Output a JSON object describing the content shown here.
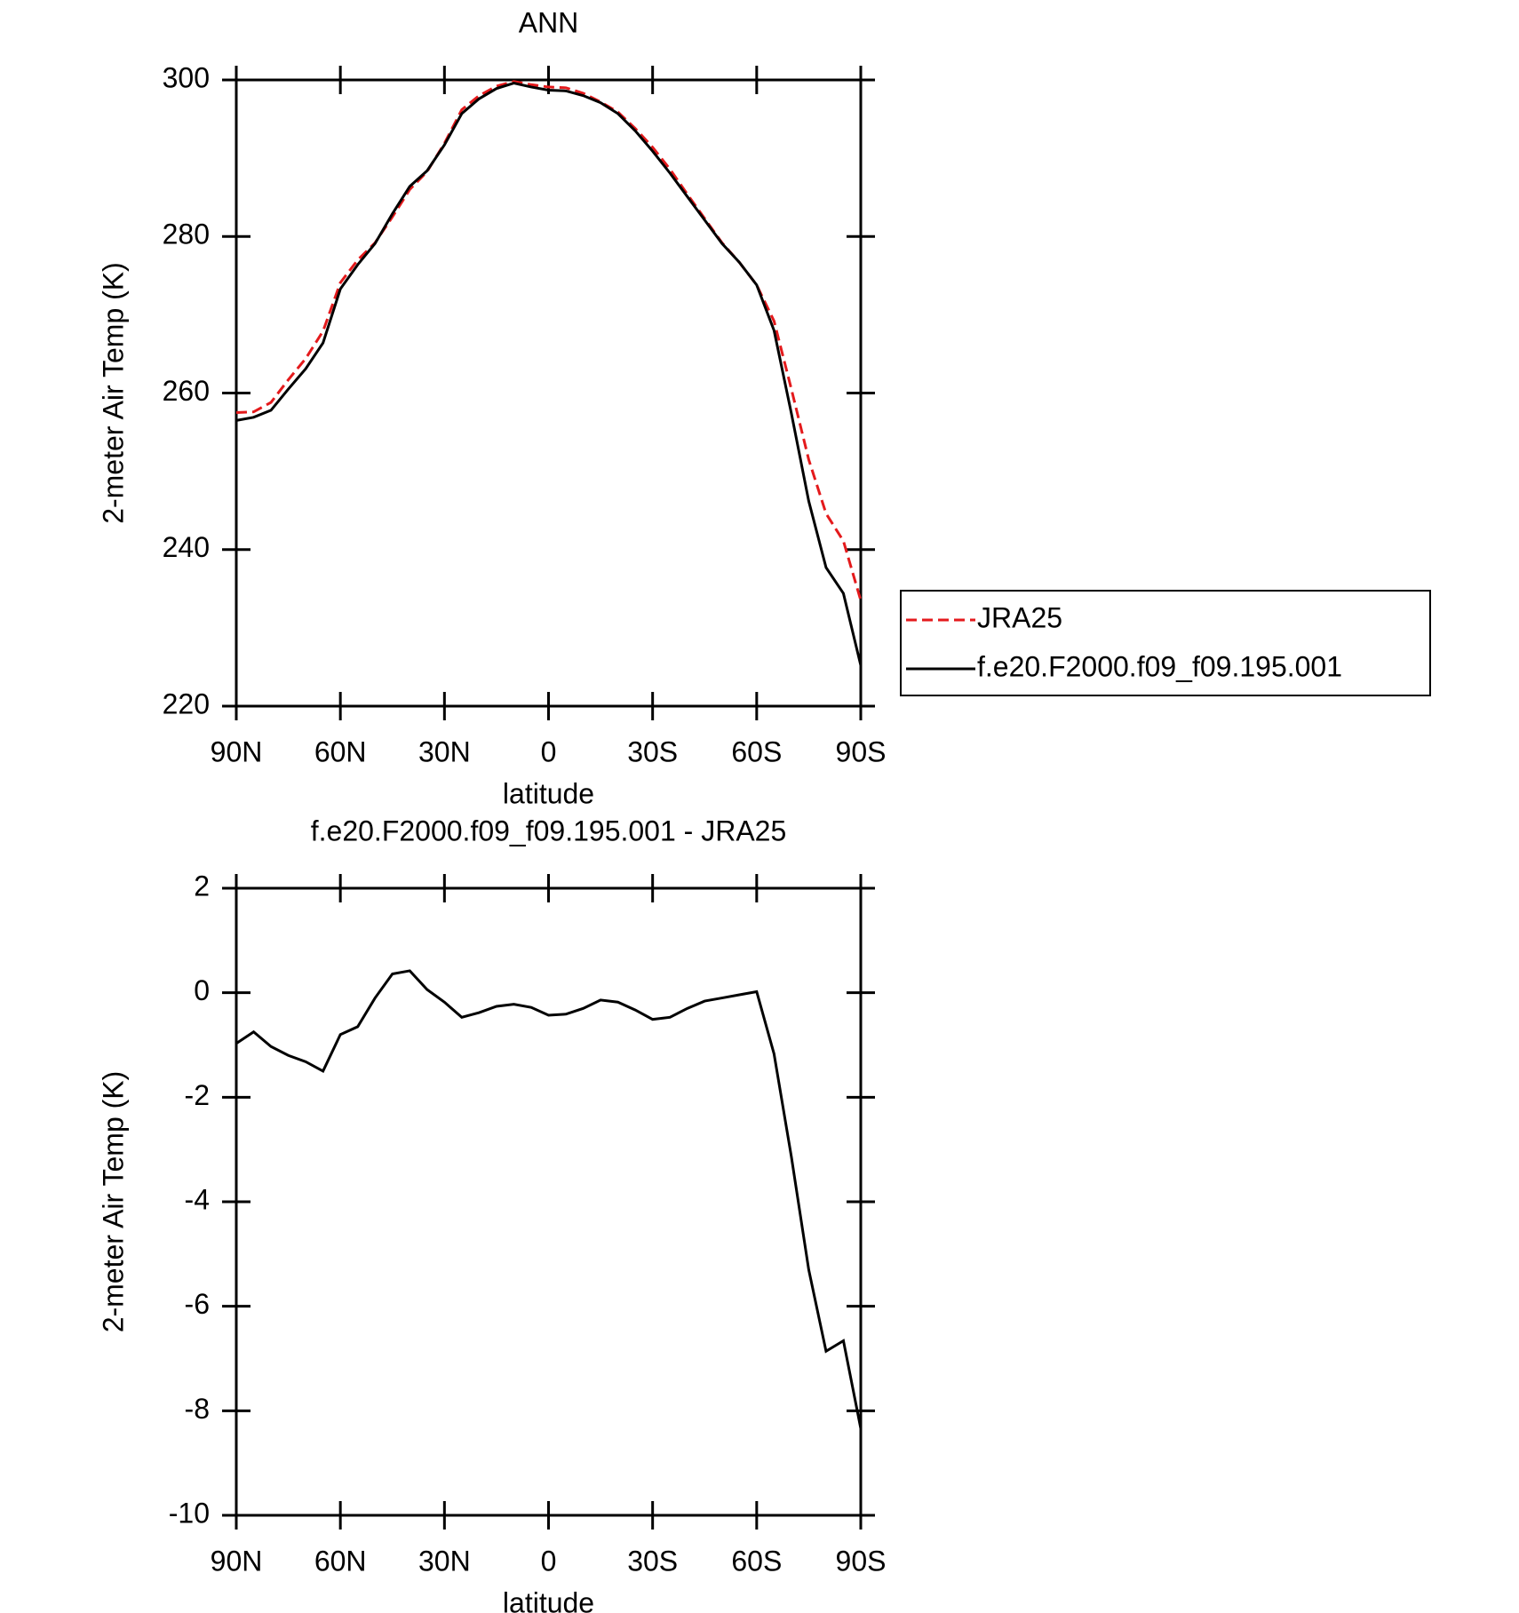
{
  "chart_data": [
    {
      "type": "line",
      "title": "ANN",
      "x_label": "latitude",
      "y_label": "2-meter Air Temp (K)",
      "x": [
        90,
        85,
        80,
        75,
        70,
        65,
        60,
        55,
        50,
        45,
        40,
        35,
        30,
        25,
        20,
        15,
        10,
        5,
        0,
        -5,
        -10,
        -15,
        -20,
        -25,
        -30,
        -35,
        -40,
        -45,
        -50,
        -55,
        -60,
        -65,
        -70,
        -75,
        -80,
        -85,
        -90
      ],
      "series": [
        {
          "name": "JRA25",
          "color": "#e41a1c",
          "dash": true,
          "values": [
            257.5,
            257.6,
            258.8,
            261.7,
            264.4,
            267.9,
            274.1,
            277.0,
            279.2,
            282.5,
            286.0,
            288.3,
            291.9,
            296.2,
            298.0,
            299.2,
            299.8,
            299.4,
            299.1,
            299.0,
            298.3,
            297.2,
            295.9,
            293.8,
            291.4,
            288.6,
            285.4,
            282.3,
            279.2,
            276.7,
            273.8,
            269.2,
            260.5,
            251.5,
            244.6,
            241.1,
            233.5
          ]
        },
        {
          "name": "f.e20.F2000.f09_f09.195.001",
          "color": "#000000",
          "dash": false,
          "values": [
            256.5,
            256.9,
            257.8,
            260.5,
            263.1,
            266.4,
            273.3,
            276.4,
            279.1,
            282.9,
            286.4,
            288.4,
            291.7,
            295.7,
            297.6,
            298.9,
            299.6,
            299.1,
            298.7,
            298.6,
            298.0,
            297.1,
            295.7,
            293.5,
            290.9,
            288.1,
            285.1,
            282.1,
            279.1,
            276.7,
            273.8,
            268.0,
            257.4,
            246.2,
            237.7,
            234.4,
            225.2
          ]
        }
      ],
      "xlim": [
        90,
        -90
      ],
      "xticks": [
        {
          "value": 90,
          "label": "90N"
        },
        {
          "value": 60,
          "label": "60N"
        },
        {
          "value": 30,
          "label": "30N"
        },
        0,
        {
          "value": -30,
          "label": "30S"
        },
        {
          "value": -60,
          "label": "60S"
        },
        {
          "value": -90,
          "label": "90S"
        }
      ],
      "ylim": [
        220,
        300
      ],
      "yticks": [
        220,
        240,
        260,
        280,
        300
      ],
      "grid": false,
      "legend": "right"
    },
    {
      "type": "line",
      "title": "f.e20.F2000.f09_f09.195.001 - JRA25",
      "x_label": "latitude",
      "y_label": "2-meter Air Temp (K)",
      "x": [
        90,
        85,
        80,
        75,
        70,
        65,
        60,
        55,
        50,
        45,
        40,
        35,
        30,
        25,
        20,
        15,
        10,
        5,
        0,
        -5,
        -10,
        -15,
        -20,
        -25,
        -30,
        -35,
        -40,
        -45,
        -50,
        -55,
        -60,
        -65,
        -70,
        -75,
        -80,
        -85,
        -90
      ],
      "series": [
        {
          "color": "#000000",
          "dash": false,
          "values": [
            -0.97,
            -0.75,
            -1.03,
            -1.2,
            -1.32,
            -1.5,
            -0.8,
            -0.65,
            -0.1,
            0.36,
            0.42,
            0.06,
            -0.18,
            -0.47,
            -0.38,
            -0.26,
            -0.22,
            -0.28,
            -0.43,
            -0.41,
            -0.3,
            -0.14,
            -0.18,
            -0.33,
            -0.51,
            -0.47,
            -0.3,
            -0.16,
            -0.1,
            -0.04,
            0.02,
            -1.17,
            -3.14,
            -5.3,
            -6.86,
            -6.66,
            -8.34
          ]
        }
      ],
      "xlim": [
        90,
        -90
      ],
      "xticks": [
        {
          "value": 90,
          "label": "90N"
        },
        {
          "value": 60,
          "label": "60N"
        },
        {
          "value": 30,
          "label": "30N"
        },
        0,
        {
          "value": -30,
          "label": "30S"
        },
        {
          "value": -60,
          "label": "60S"
        },
        {
          "value": -90,
          "label": "90S"
        }
      ],
      "ylim": [
        -10,
        2
      ],
      "yticks": [
        -10,
        -8,
        -6,
        -4,
        -2,
        0,
        2
      ],
      "grid": false
    }
  ]
}
